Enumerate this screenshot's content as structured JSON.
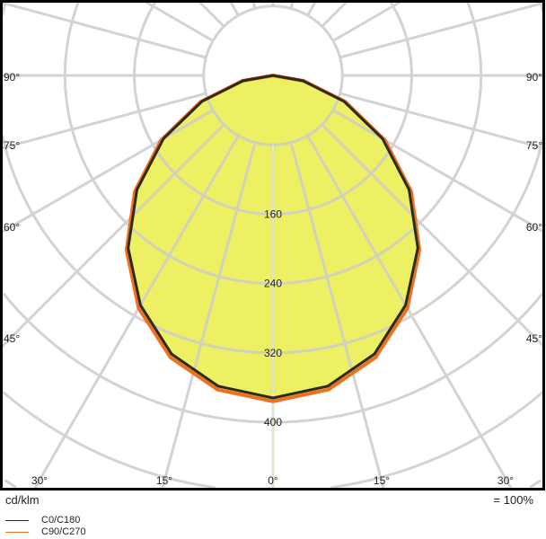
{
  "chart_data": {
    "type": "polar",
    "unit_label": "cd/klm",
    "scale_note": "= 100%",
    "radial_ticks": [
      160,
      240,
      320,
      400
    ],
    "radial_step": 80,
    "angle_labels_left": [
      "90°",
      "75°",
      "60°",
      "45°"
    ],
    "angle_labels_right": [
      "90°",
      "75°",
      "60°",
      "45°"
    ],
    "angle_labels_bottom": [
      "30°",
      "15°",
      "0°",
      "15°",
      "30°"
    ],
    "angles": [
      0,
      10,
      20,
      30,
      40,
      50,
      60,
      70,
      80,
      90
    ],
    "series": [
      {
        "name": "C0/C180",
        "color": "#2b2b1e",
        "values": [
          372,
          364,
          342,
          306,
          260,
          205,
          146,
          87,
          35,
          0
        ]
      },
      {
        "name": "C90/C270",
        "color": "#f07020",
        "values": [
          376,
          368,
          346,
          310,
          263,
          208,
          149,
          89,
          36,
          0
        ]
      }
    ],
    "fill_color": "#eef064",
    "grid_color": "#cccccc",
    "grid": true,
    "legend_position": "bottom-left"
  }
}
